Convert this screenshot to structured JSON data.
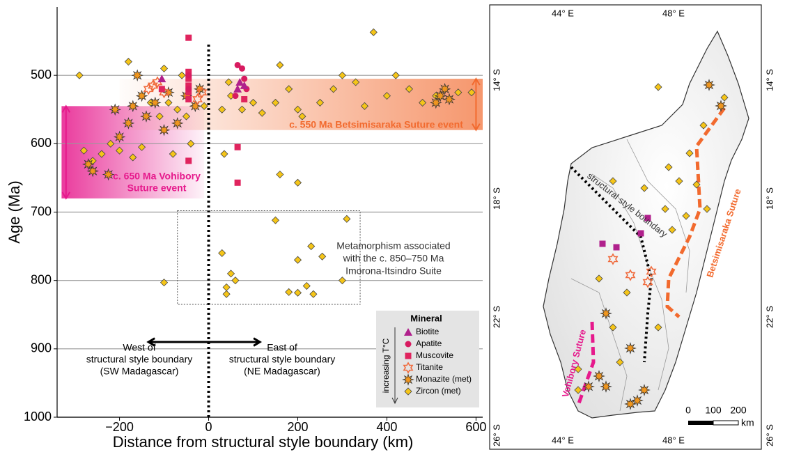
{
  "chart_data": {
    "type": "scatter",
    "xlabel": "Distance from structural style boundary (km)",
    "ylabel": "Age (Ma)",
    "xlim": [
      -340,
      615
    ],
    "ylim": [
      1000,
      400
    ],
    "xticks": [
      {
        "value": -200,
        "label": "−200"
      },
      0,
      200,
      400,
      600
    ],
    "yticks": [
      500,
      600,
      700,
      800,
      900,
      1000
    ],
    "grid": true,
    "legend": "lower right",
    "legend_title": "Mineral",
    "legend_note": "increasing T°C",
    "vline": {
      "x": 0,
      "y": [
        455,
        1000
      ]
    },
    "bands": [
      {
        "label": [
          "c. 650 Ma Vohibory",
          "Suture event"
        ],
        "color": "#e6198c",
        "x": [
          -330,
          -10
        ],
        "y": [
          545,
          680
        ],
        "arrow_x": -320
      },
      {
        "label": [
          "c. 550 Ma Betsimisaraka Suture event"
        ],
        "color": "#f26a2e",
        "x": [
          -200,
          615
        ],
        "y": [
          505,
          580
        ],
        "arrow_x": 600
      }
    ],
    "box": {
      "label": [
        "Metamorphism associated",
        "with the c. 850–750 Ma",
        "Imorona-Itsindro Suite"
      ],
      "x": [
        -70,
        340
      ],
      "y": [
        698,
        835
      ]
    },
    "arrows": {
      "x": [
        -135,
        115
      ],
      "y": 890,
      "west": [
        "West of",
        "structural style boundary",
        "(SW Madagascar)"
      ],
      "east": [
        "East of",
        "structural style boundary",
        "(NE Madagascar)"
      ]
    },
    "series": [
      {
        "name": "Biotite",
        "marker": "triangle",
        "color": "#b0208c",
        "x": [
          -105,
          70,
          80,
          65
        ],
        "values": [
          505,
          510,
          515,
          520
        ]
      },
      {
        "name": "Apatite",
        "marker": "circle",
        "color": "#d81b60",
        "x": [
          -45,
          65,
          75,
          80,
          85,
          60,
          -45
        ],
        "values": [
          500,
          485,
          490,
          505,
          520,
          530,
          520
        ]
      },
      {
        "name": "Muscovite",
        "marker": "square",
        "color": "#e0245e",
        "x": [
          -45,
          -45,
          -45,
          -45,
          -45,
          -45,
          -45,
          65,
          65,
          80,
          -105
        ],
        "values": [
          445,
          495,
          505,
          515,
          525,
          535,
          625,
          605,
          657,
          535,
          520
        ]
      },
      {
        "name": "Titanite",
        "marker": "hexagram",
        "color": "#f06a3c",
        "x": [
          -135,
          -100,
          -25,
          -15,
          -115,
          -125
        ],
        "values": [
          520,
          525,
          535,
          525,
          510,
          515
        ]
      },
      {
        "name": "Monazite (met)",
        "marker": "star",
        "color": "#f0961e",
        "x": [
          -270,
          -260,
          -225,
          -200,
          -180,
          -170,
          -160,
          -140,
          -120,
          -100,
          -90,
          -70,
          -50,
          -30,
          -20,
          -210,
          -150,
          520,
          530,
          540,
          510
        ],
        "values": [
          630,
          640,
          645,
          590,
          570,
          545,
          500,
          560,
          540,
          580,
          525,
          570,
          530,
          545,
          520,
          550,
          530,
          530,
          520,
          535,
          540
        ]
      },
      {
        "name": "Zircon (met)",
        "marker": "diamond",
        "color": "#f5c518",
        "x": [
          -290,
          -180,
          -100,
          -60,
          -20,
          -280,
          -260,
          -240,
          -220,
          -200,
          -170,
          -150,
          -130,
          -110,
          -90,
          -70,
          -50,
          -10,
          -40,
          -80,
          30,
          50,
          100,
          120,
          150,
          160,
          180,
          200,
          210,
          250,
          280,
          300,
          330,
          350,
          370,
          400,
          420,
          450,
          480,
          510,
          560,
          590,
          160,
          200,
          35,
          310,
          230,
          200,
          150,
          30,
          50,
          40,
          40,
          60,
          180,
          200,
          220,
          235,
          300,
          -100,
          255,
          45,
          75
        ],
        "values": [
          500,
          480,
          490,
          500,
          520,
          610,
          625,
          615,
          600,
          610,
          620,
          605,
          540,
          560,
          540,
          550,
          560,
          545,
          600,
          615,
          550,
          530,
          540,
          555,
          540,
          485,
          520,
          550,
          560,
          540,
          520,
          500,
          510,
          545,
          437,
          530,
          500,
          520,
          540,
          530,
          525,
          525,
          645,
          657,
          615,
          710,
          750,
          770,
          712,
          760,
          790,
          810,
          820,
          800,
          817,
          818,
          808,
          820,
          800,
          803,
          765,
          510,
          550
        ]
      }
    ]
  },
  "map": {
    "lon_labels": [
      "44° E",
      "48° E"
    ],
    "lat_labels": [
      "14° S",
      "18° S",
      "22° S",
      "26° S"
    ],
    "boundary_label": "structural style boundary",
    "betsimisaraka_label": "Betsimisaraka Suture",
    "vohibory_label": "Vohibory Suture",
    "scale_ticks": [
      0,
      100,
      200
    ],
    "scale_unit": "km"
  }
}
